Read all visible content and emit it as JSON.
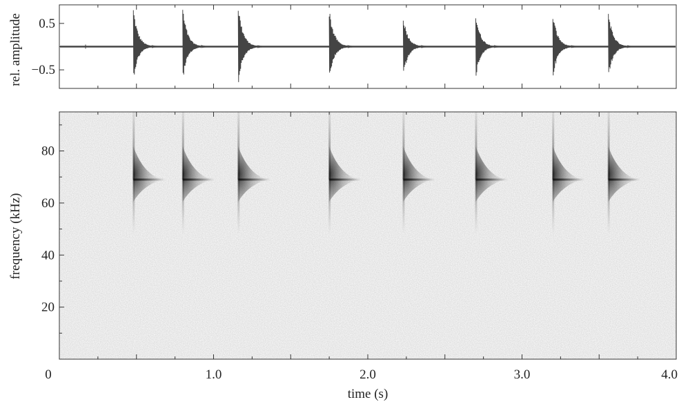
{
  "chart_data": [
    {
      "type": "line",
      "subtype": "waveform",
      "ylabel": "rel. amplitude",
      "xlabel": "",
      "xlim": [
        0,
        4.0
      ],
      "ylim": [
        -0.9,
        0.9
      ],
      "y_ticks": [
        0.5,
        -0.5
      ],
      "y_tick_labels": [
        "0.5",
        "−0.5"
      ],
      "x_ticks_shown": false,
      "baseline": 0,
      "line_color": "#444444",
      "pulses": [
        {
          "t": 0.48,
          "peak_pos": 0.75,
          "peak_neg": -0.65
        },
        {
          "t": 0.8,
          "peak_pos": 0.75,
          "peak_neg": -0.65
        },
        {
          "t": 1.16,
          "peak_pos": 0.82,
          "peak_neg": -0.75
        },
        {
          "t": 1.75,
          "peak_pos": 0.75,
          "peak_neg": -0.65
        },
        {
          "t": 2.23,
          "peak_pos": 0.6,
          "peak_neg": -0.6
        },
        {
          "t": 2.7,
          "peak_pos": 0.65,
          "peak_neg": -0.6
        },
        {
          "t": 3.2,
          "peak_pos": 0.65,
          "peak_neg": -0.6
        },
        {
          "t": 3.56,
          "peak_pos": 0.7,
          "peak_neg": -0.6
        }
      ]
    },
    {
      "type": "heatmap",
      "subtype": "spectrogram",
      "xlabel": "time (s)",
      "ylabel": "frequency (kHz)",
      "xlim": [
        0,
        4.0
      ],
      "ylim": [
        0,
        95
      ],
      "x_ticks": [
        0,
        1.0,
        2.0,
        3.0,
        4.0
      ],
      "x_tick_labels": [
        "0",
        "1.0",
        "2.0",
        "3.0",
        "4.0"
      ],
      "y_ticks": [
        20,
        40,
        60,
        80
      ],
      "y_tick_labels": [
        "20",
        "40",
        "60",
        "80"
      ],
      "colormap": "white-to-black (gray)",
      "call_peak_frequency_khz": 69,
      "call_freq_range_khz": [
        48,
        95
      ],
      "call_times": [
        0.48,
        0.8,
        1.16,
        1.75,
        2.23,
        2.7,
        3.2,
        3.56
      ]
    }
  ]
}
